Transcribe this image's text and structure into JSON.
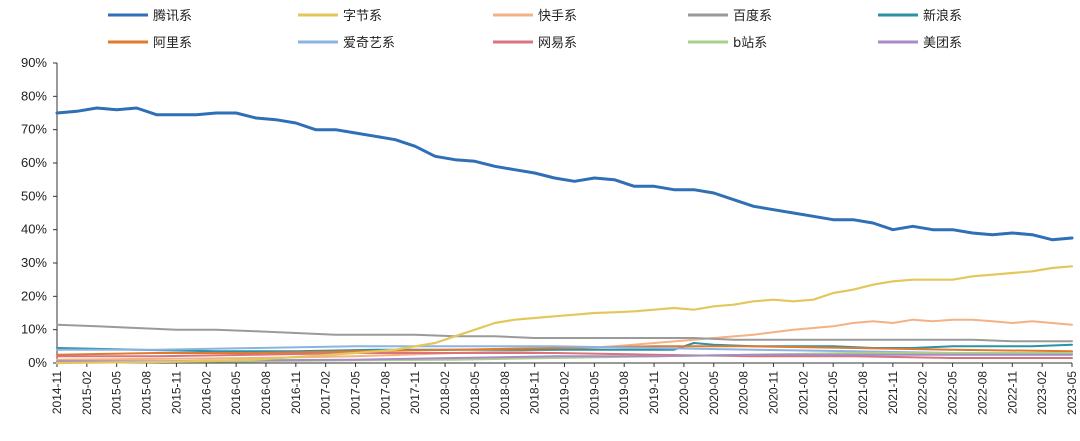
{
  "chart_data": {
    "type": "line",
    "title": "",
    "xlabel": "",
    "ylabel": "",
    "ylim": [
      0,
      90
    ],
    "y_ticks": [
      "0%",
      "10%",
      "20%",
      "30%",
      "40%",
      "50%",
      "60%",
      "70%",
      "80%",
      "90%"
    ],
    "y_tick_values": [
      0,
      10,
      20,
      30,
      40,
      50,
      60,
      70,
      80,
      90
    ],
    "x_tick_labels": [
      "2014-11",
      "2015-02",
      "2015-05",
      "2015-08",
      "2015-11",
      "2016-02",
      "2016-05",
      "2016-08",
      "2016-11",
      "2017-02",
      "2017-05",
      "2017-08",
      "2017-11",
      "2018-02",
      "2018-05",
      "2018-08",
      "2018-11",
      "2019-02",
      "2019-05",
      "2019-08",
      "2019-11",
      "2020-02",
      "2020-05",
      "2020-08",
      "2020-11",
      "2021-02",
      "2021-05",
      "2021-08",
      "2021-11",
      "2022-02",
      "2022-05",
      "2022-08",
      "2022-11",
      "2023-02",
      "2023-05"
    ],
    "x_range": [
      0,
      102
    ],
    "series": [
      {
        "name": "腾讯系",
        "color": "#2e6fb5",
        "width": 3,
        "x": [
          0,
          2,
          4,
          6,
          8,
          10,
          12,
          14,
          16,
          18,
          20,
          22,
          24,
          26,
          28,
          30,
          32,
          34,
          36,
          38,
          40,
          42,
          44,
          46,
          48,
          50,
          52,
          54,
          56,
          58,
          60,
          62,
          64,
          66,
          68,
          70,
          72,
          74,
          76,
          78,
          80,
          82,
          84,
          86,
          88,
          90,
          92,
          94,
          96,
          98,
          100,
          102
        ],
        "y": [
          75,
          75.5,
          76.5,
          76,
          76.5,
          74.5,
          74.5,
          74.5,
          75,
          75,
          73.5,
          73,
          72,
          70,
          70,
          69,
          68,
          67,
          65,
          62,
          61,
          60.5,
          59,
          58,
          57,
          55.5,
          54.5,
          55.5,
          55,
          53,
          53,
          52,
          52,
          51,
          49,
          47,
          46,
          45,
          44,
          43,
          43,
          42,
          40,
          41,
          40,
          40,
          39,
          38.5,
          39,
          38.5,
          37,
          37.5
        ]
      },
      {
        "name": "字节系",
        "color": "#e3c75a",
        "width": 2.2,
        "x": [
          0,
          10,
          20,
          30,
          34,
          38,
          40,
          42,
          44,
          46,
          48,
          50,
          52,
          54,
          56,
          58,
          60,
          62,
          64,
          66,
          68,
          70,
          72,
          74,
          76,
          78,
          80,
          82,
          84,
          86,
          88,
          90,
          92,
          94,
          96,
          98,
          100,
          102
        ],
        "y": [
          0,
          0.3,
          1,
          3,
          4,
          6,
          8,
          10,
          12,
          13,
          13.5,
          14,
          14.5,
          15,
          15.2,
          15.5,
          16,
          16.5,
          16,
          17,
          17.5,
          18.5,
          19,
          18.5,
          19,
          21,
          22,
          23.5,
          24.5,
          25,
          25,
          25,
          26,
          26.5,
          27,
          27.5,
          28.5,
          29
        ]
      },
      {
        "name": "快手系",
        "color": "#f4b183",
        "width": 2,
        "x": [
          0,
          20,
          30,
          40,
          46,
          50,
          56,
          60,
          64,
          66,
          70,
          74,
          76,
          78,
          80,
          82,
          84,
          86,
          88,
          90,
          92,
          94,
          96,
          98,
          100,
          102
        ],
        "y": [
          1,
          1.5,
          2,
          3,
          3.5,
          4,
          5,
          6,
          7,
          7.5,
          8.5,
          10,
          10.5,
          11,
          12,
          12.5,
          12,
          13,
          12.5,
          13,
          13,
          12.5,
          12,
          12.5,
          12,
          11.5
        ]
      },
      {
        "name": "百度系",
        "color": "#9a9a9a",
        "width": 2,
        "x": [
          0,
          4,
          8,
          12,
          16,
          20,
          24,
          28,
          32,
          36,
          40,
          44,
          48,
          52,
          56,
          60,
          64,
          68,
          72,
          76,
          80,
          84,
          88,
          92,
          96,
          100,
          102
        ],
        "y": [
          11.5,
          11,
          10.5,
          10,
          10,
          9.5,
          9,
          8.5,
          8.5,
          8.5,
          8,
          8,
          7.5,
          7.5,
          7.5,
          7.5,
          7.5,
          7,
          7,
          7,
          7,
          7,
          7,
          7,
          6.5,
          6.5,
          6.5
        ]
      },
      {
        "name": "新浪系",
        "color": "#2a93a7",
        "width": 2,
        "x": [
          0,
          8,
          16,
          24,
          32,
          40,
          48,
          56,
          62,
          64,
          66,
          70,
          74,
          78,
          82,
          86,
          90,
          94,
          98,
          102
        ],
        "y": [
          4.5,
          4,
          3.5,
          3.5,
          4,
          4,
          4,
          4,
          4,
          6,
          5.5,
          5,
          5,
          5,
          4.5,
          4.5,
          5,
          5,
          5,
          5.5
        ]
      },
      {
        "name": "阿里系",
        "color": "#e07a2c",
        "width": 2,
        "x": [
          0,
          10,
          20,
          30,
          40,
          50,
          60,
          70,
          80,
          90,
          102
        ],
        "y": [
          2.5,
          3,
          3,
          3.5,
          4,
          4.5,
          5,
          5,
          4.5,
          4,
          3.5
        ]
      },
      {
        "name": "爱奇艺系",
        "color": "#8db3e2",
        "width": 2,
        "x": [
          0,
          10,
          20,
          30,
          40,
          50,
          60,
          70,
          80,
          90,
          102
        ],
        "y": [
          4,
          4,
          4.5,
          5,
          5,
          5,
          4.5,
          4,
          3.5,
          3,
          3
        ]
      },
      {
        "name": "网易系",
        "color": "#d9737c",
        "width": 2,
        "x": [
          0,
          10,
          20,
          30,
          40,
          50,
          60,
          70,
          80,
          90,
          102
        ],
        "y": [
          2,
          2,
          2.5,
          3,
          3,
          3,
          2.5,
          2,
          2,
          1.5,
          1.5
        ]
      },
      {
        "name": "b站系",
        "color": "#a9d18e",
        "width": 2,
        "x": [
          0,
          10,
          20,
          30,
          40,
          50,
          60,
          70,
          80,
          90,
          102
        ],
        "y": [
          0.2,
          0.3,
          0.5,
          0.8,
          1,
          1.5,
          2,
          2.5,
          3,
          3,
          3
        ]
      },
      {
        "name": "美团系",
        "color": "#a68bc4",
        "width": 2,
        "x": [
          0,
          10,
          20,
          30,
          40,
          50,
          60,
          70,
          80,
          90,
          102
        ],
        "y": [
          0.5,
          0.5,
          0.8,
          1,
          1.5,
          2,
          2,
          2.5,
          2.5,
          2.5,
          2.5
        ]
      }
    ],
    "legend": {
      "position": "top",
      "rows": 2
    }
  }
}
